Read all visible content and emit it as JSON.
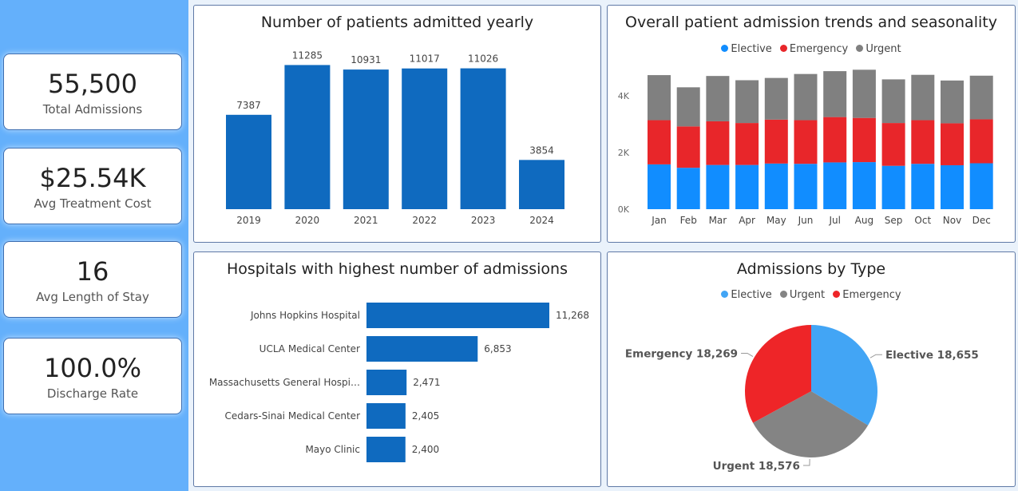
{
  "kpis": [
    {
      "value": "55,500",
      "label": "Total Admissions"
    },
    {
      "value": "$25.54K",
      "label": "Avg Treatment Cost"
    },
    {
      "value": "16",
      "label": "Avg Length of Stay"
    },
    {
      "value": "100.0%",
      "label": "Discharge Rate"
    }
  ],
  "colors": {
    "bar_blue": "#0f6abf",
    "elective": "#118dff",
    "emergency": "#e8262a",
    "urgent": "#808080",
    "pie_elective": "#42a5f5",
    "pie_urgent": "#848484",
    "pie_emergency": "#ee2528"
  },
  "chart_data": [
    {
      "type": "bar",
      "title": "Number of patients admitted yearly",
      "categories": [
        "2019",
        "2020",
        "2021",
        "2022",
        "2023",
        "2024"
      ],
      "values": [
        7387,
        11285,
        10931,
        11017,
        11026,
        3854
      ],
      "ylim": [
        0,
        11500
      ]
    },
    {
      "type": "bar",
      "stacked": true,
      "title": "Overall patient admission trends and seasonality",
      "categories": [
        "Jan",
        "Feb",
        "Mar",
        "Apr",
        "May",
        "Jun",
        "Jul",
        "Aug",
        "Sep",
        "Oct",
        "Nov",
        "Dec"
      ],
      "series": [
        {
          "name": "Elective",
          "values": [
            1580,
            1460,
            1560,
            1560,
            1610,
            1600,
            1650,
            1660,
            1530,
            1600,
            1550,
            1620
          ]
        },
        {
          "name": "Emergency",
          "values": [
            1560,
            1460,
            1540,
            1480,
            1550,
            1540,
            1600,
            1560,
            1510,
            1540,
            1480,
            1550
          ]
        },
        {
          "name": "Urgent",
          "values": [
            1590,
            1380,
            1600,
            1510,
            1470,
            1630,
            1620,
            1700,
            1540,
            1600,
            1510,
            1540
          ]
        }
      ],
      "yticks": [
        "0K",
        "2K",
        "4K"
      ],
      "ylim": [
        0,
        5000
      ],
      "legend": "top-center"
    },
    {
      "type": "bar",
      "orientation": "horizontal",
      "title": "Hospitals with highest number of admissions",
      "categories": [
        "Johns Hopkins Hospital",
        "UCLA Medical Center",
        "Massachusetts General Hospi…",
        "Cedars-Sinai Medical Center",
        "Mayo Clinic"
      ],
      "values": [
        11268,
        6853,
        2471,
        2405,
        2400
      ],
      "value_labels": [
        "11,268",
        "6,853",
        "2,471",
        "2,405",
        "2,400"
      ],
      "xlim": [
        0,
        11268
      ]
    },
    {
      "type": "pie",
      "title": "Admissions by Type",
      "legend_order": [
        "Elective",
        "Urgent",
        "Emergency"
      ],
      "slices": [
        {
          "name": "Elective",
          "value": 18655,
          "label": "Elective 18,655"
        },
        {
          "name": "Urgent",
          "value": 18576,
          "label": "Urgent 18,576"
        },
        {
          "name": "Emergency",
          "value": 18269,
          "label": "Emergency 18,269"
        }
      ],
      "legend": "top-center"
    }
  ]
}
